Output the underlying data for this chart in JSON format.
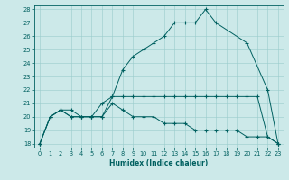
{
  "xlabel": "Humidex (Indice chaleur)",
  "background_color": "#cce9e9",
  "grid_color": "#99cccc",
  "line_color": "#006060",
  "xlim": [
    -0.5,
    23.5
  ],
  "ylim": [
    17.7,
    28.3
  ],
  "xticks": [
    0,
    1,
    2,
    3,
    4,
    5,
    6,
    7,
    8,
    9,
    10,
    11,
    12,
    13,
    14,
    15,
    16,
    17,
    18,
    19,
    20,
    21,
    22,
    23
  ],
  "yticks": [
    18,
    19,
    20,
    21,
    22,
    23,
    24,
    25,
    26,
    27,
    28
  ],
  "line1_x": [
    0,
    1,
    2,
    3,
    4,
    5,
    6,
    7,
    8,
    9,
    10,
    11,
    12,
    13,
    14,
    15,
    16,
    17,
    20,
    22,
    23
  ],
  "line1_y": [
    18,
    20,
    20.5,
    20.5,
    20,
    20,
    20,
    21.5,
    23.5,
    24.5,
    25,
    25.5,
    26,
    27,
    27,
    27,
    28,
    27,
    25.5,
    22,
    18
  ],
  "line2_x": [
    0,
    1,
    2,
    3,
    4,
    5,
    6,
    7,
    8,
    9,
    10,
    11,
    12,
    13,
    14,
    15,
    16,
    17,
    18,
    19,
    20,
    21,
    22,
    23
  ],
  "line2_y": [
    18,
    20,
    20.5,
    20,
    20,
    20,
    21,
    21.5,
    21.5,
    21.5,
    21.5,
    21.5,
    21.5,
    21.5,
    21.5,
    21.5,
    21.5,
    21.5,
    21.5,
    21.5,
    21.5,
    21.5,
    18.5,
    18
  ],
  "line3_x": [
    0,
    1,
    2,
    3,
    4,
    5,
    6,
    7,
    8,
    9,
    10,
    11,
    12,
    13,
    14,
    15,
    16,
    17,
    18,
    19,
    20,
    21,
    22,
    23
  ],
  "line3_y": [
    18,
    20,
    20.5,
    20,
    20,
    20,
    20,
    21,
    20.5,
    20,
    20,
    20,
    19.5,
    19.5,
    19.5,
    19,
    19,
    19,
    19,
    19,
    18.5,
    18.5,
    18.5,
    18
  ],
  "xlabel_fontsize": 5.5,
  "tick_fontsize": 4.8
}
